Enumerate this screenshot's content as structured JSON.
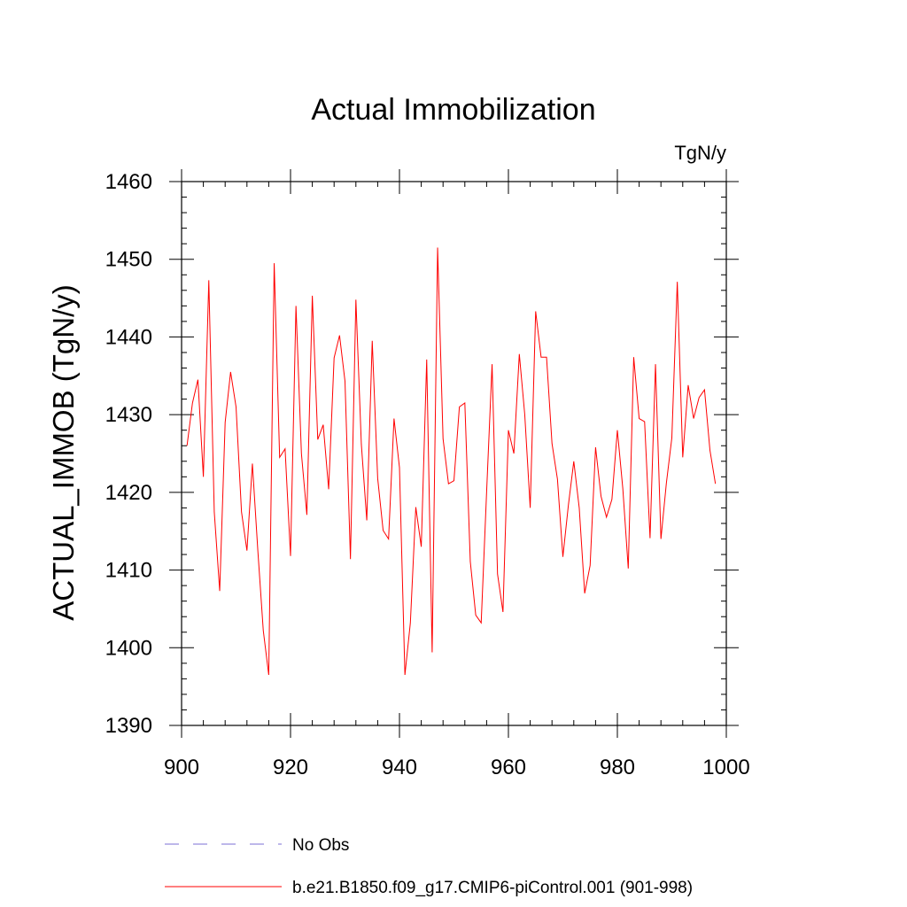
{
  "chart_data": {
    "type": "line",
    "title": "Actual Immobilization",
    "units": "TgN/y",
    "ylabel": "ACTUAL_IMMOB  (TgN/y)",
    "xlabel": "",
    "xlim": [
      900,
      1000
    ],
    "ylim": [
      1390,
      1460
    ],
    "xticks": [
      900,
      920,
      940,
      960,
      980,
      1000
    ],
    "yticks": [
      1390,
      1400,
      1410,
      1420,
      1430,
      1440,
      1450,
      1460
    ],
    "x_minor_step": 4,
    "y_minor_step": 2,
    "colors": {
      "series": "#ff0000",
      "obs": "#7b6fd6",
      "frame": "#000000"
    },
    "series": [
      {
        "name": "b.e21.B1850.f09_g17.CMIP6-piControl.001 (901-998)",
        "x_start": 901,
        "values": [
          1426,
          1431.5,
          1434.5,
          1422,
          1447.3,
          1417.5,
          1407.3,
          1429,
          1435.5,
          1431,
          1417.5,
          1412.5,
          1423.7,
          1412.5,
          1402.2,
          1396.5,
          1449.5,
          1424.5,
          1425.6,
          1411.8,
          1444,
          1425,
          1417.1,
          1445.3,
          1426.8,
          1428.7,
          1420.4,
          1437.3,
          1440.2,
          1434.3,
          1411.4,
          1444.8,
          1426.2,
          1416.4,
          1439.5,
          1421.8,
          1415.1,
          1414,
          1429.5,
          1423.2,
          1396.5,
          1403.2,
          1418.1,
          1413,
          1437.1,
          1399.4,
          1451.5,
          1426.9,
          1421.1,
          1421.5,
          1431,
          1431.5,
          1411.1,
          1404.2,
          1403.2,
          1420.1,
          1436.5,
          1409.5,
          1404.6,
          1428,
          1425,
          1437.8,
          1430,
          1418,
          1443.3,
          1437.4,
          1437.4,
          1426.3,
          1421.7,
          1411.7,
          1418.3,
          1424,
          1418,
          1407,
          1410.6,
          1425.8,
          1419.5,
          1416.8,
          1419.1,
          1428,
          1420.5,
          1410.2,
          1437.4,
          1429.5,
          1429.1,
          1414.1,
          1436.5,
          1414,
          1421.2,
          1427,
          1447.1,
          1424.5,
          1433.8,
          1429.5,
          1432.2,
          1433.2,
          1425.4,
          1421.1
        ]
      }
    ],
    "legend": [
      {
        "label": "No Obs",
        "style": "dashed",
        "color": "#7b6fd6"
      },
      {
        "label": "b.e21.B1850.f09_g17.CMIP6-piControl.001 (901-998)",
        "style": "solid",
        "color": "#ff0000"
      }
    ]
  }
}
